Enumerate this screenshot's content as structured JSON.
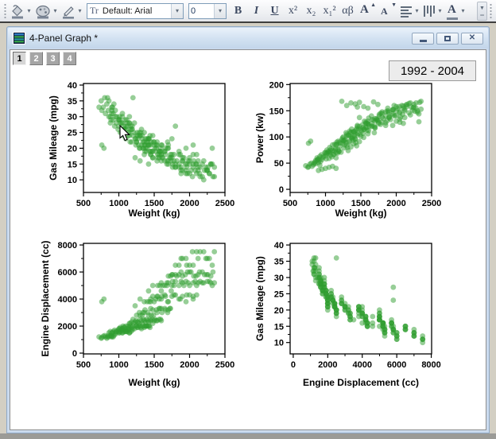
{
  "icons": {
    "dropdown": "▾",
    "up_small": "▲",
    "down_small": "▼",
    "close": "✕",
    "grip_dots": "⋮"
  },
  "toolbar": {
    "font_combo_icon": "Tr",
    "font_combo_value": "Default: Arial",
    "size_combo_value": "0",
    "bold": "B",
    "italic": "I",
    "underline": "U",
    "superscript": "x²",
    "subscript": "x₂",
    "subsuperscript": "x₁²",
    "greek": "αβ",
    "inc_font": "A",
    "dec_font": "A",
    "font_color": "A"
  },
  "window": {
    "title": "4-Panel Graph *",
    "tabs": [
      "1",
      "2",
      "3",
      "4"
    ],
    "active_tab": "1",
    "annotation": "1992 - 2004"
  },
  "chart_data": {
    "type": "scatter",
    "note_label": "1992 - 2004",
    "marker_color": "#2f9e2f",
    "marker_opacity": 0.5,
    "marker_radius": 3.4,
    "columns": [
      "weight_kg",
      "gas_mileage_mpg",
      "power_kw",
      "engine_displacement_cc"
    ],
    "panels": [
      {
        "xlabel": "Weight (kg)",
        "ylabel": "Gas Mileage (mpg)",
        "x_col": 0,
        "y_col": 1,
        "x_ticks": [
          500,
          1000,
          1500,
          2000,
          2500
        ],
        "y_ticks": [
          10,
          15,
          20,
          25,
          30,
          35,
          40
        ],
        "x_range": [
          500,
          2500
        ],
        "y_range": [
          6,
          40.5
        ]
      },
      {
        "xlabel": "Weight (kg)",
        "ylabel": "Power (kw)",
        "x_col": 0,
        "y_col": 2,
        "x_ticks": [
          500,
          1000,
          1500,
          2000,
          2500
        ],
        "y_ticks": [
          0,
          50,
          100,
          150,
          200
        ],
        "x_range": [
          500,
          2500
        ],
        "y_range": [
          -6,
          202
        ]
      },
      {
        "xlabel": "Weight (kg)",
        "ylabel": "Engine Displacement (cc)",
        "x_col": 0,
        "y_col": 3,
        "x_ticks": [
          500,
          1000,
          1500,
          2000,
          2500
        ],
        "y_ticks": [
          0,
          2000,
          4000,
          6000,
          8000
        ],
        "x_range": [
          500,
          2500
        ],
        "y_range": [
          -58,
          8120
        ]
      },
      {
        "xlabel": "Engine Displacement (cc)",
        "ylabel": "Gas Mileage (mpg)",
        "x_col": 3,
        "y_col": 1,
        "x_ticks": [
          0,
          2000,
          4000,
          6000,
          8000
        ],
        "y_ticks": [
          10,
          15,
          20,
          25,
          30,
          35,
          40
        ],
        "x_range": [
          -180,
          8020
        ],
        "y_range": [
          6.5,
          40.5
        ]
      }
    ],
    "rows": [
      [
        720,
        33,
        45,
        1200
      ],
      [
        750,
        35,
        42,
        1100
      ],
      [
        780,
        33,
        48,
        1250
      ],
      [
        800,
        36,
        50,
        1300
      ],
      [
        810,
        31,
        44,
        1200
      ],
      [
        830,
        34,
        47,
        1100
      ],
      [
        850,
        32,
        52,
        1300
      ],
      [
        860,
        35,
        49,
        1200
      ],
      [
        880,
        30,
        55,
        1300
      ],
      [
        900,
        33,
        51,
        1250
      ],
      [
        920,
        31,
        46,
        1200
      ],
      [
        930,
        34,
        53,
        1300
      ],
      [
        760,
        32,
        43,
        1150
      ],
      [
        840,
        36,
        50,
        1200
      ],
      [
        890,
        29,
        57,
        1300
      ],
      [
        860,
        30,
        55,
        1500
      ],
      [
        880,
        28,
        60,
        1600
      ],
      [
        900,
        31,
        58,
        1500
      ],
      [
        920,
        29,
        63,
        1600
      ],
      [
        940,
        27,
        66,
        1700
      ],
      [
        950,
        32,
        57,
        1500
      ],
      [
        970,
        30,
        61,
        1600
      ],
      [
        990,
        26,
        70,
        1700
      ],
      [
        1000,
        29,
        64,
        1600
      ],
      [
        1020,
        28,
        68,
        1600
      ],
      [
        1040,
        25,
        72,
        1700
      ],
      [
        1050,
        31,
        59,
        1500
      ],
      [
        1070,
        27,
        65,
        1600
      ],
      [
        1090,
        29,
        62,
        1600
      ],
      [
        1100,
        26,
        74,
        1700
      ],
      [
        1120,
        28,
        67,
        1600
      ],
      [
        1140,
        25,
        76,
        1700
      ],
      [
        1150,
        30,
        60,
        1500
      ],
      [
        1170,
        27,
        69,
        1600
      ],
      [
        1190,
        26,
        73,
        1700
      ],
      [
        910,
        33,
        56,
        1500
      ],
      [
        960,
        28,
        62,
        1600
      ],
      [
        1010,
        30,
        58,
        1500
      ],
      [
        1060,
        26,
        71,
        1700
      ],
      [
        1110,
        29,
        66,
        1600
      ],
      [
        950,
        30,
        38,
        1400
      ],
      [
        1000,
        29,
        40,
        1500
      ],
      [
        1050,
        28,
        42,
        1500
      ],
      [
        1100,
        27,
        44,
        1600
      ],
      [
        1150,
        28,
        40,
        1500
      ],
      [
        900,
        32,
        36,
        1200
      ],
      [
        1000,
        27,
        70,
        1800
      ],
      [
        1020,
        25,
        75,
        1900
      ],
      [
        1040,
        28,
        72,
        1800
      ],
      [
        1060,
        24,
        80,
        2000
      ],
      [
        1080,
        26,
        77,
        1900
      ],
      [
        1100,
        23,
        85,
        2000
      ],
      [
        1120,
        27,
        73,
        1800
      ],
      [
        1140,
        25,
        78,
        1900
      ],
      [
        1160,
        22,
        90,
        2000
      ],
      [
        1180,
        26,
        76,
        1900
      ],
      [
        1200,
        24,
        82,
        2000
      ],
      [
        1220,
        28,
        71,
        1800
      ],
      [
        1240,
        23,
        88,
        2000
      ],
      [
        1260,
        25,
        79,
        1900
      ],
      [
        1280,
        21,
        95,
        2000
      ],
      [
        1300,
        24,
        84,
        2000
      ],
      [
        1320,
        26,
        74,
        1800
      ],
      [
        1340,
        22,
        92,
        2000
      ],
      [
        1360,
        25,
        81,
        1900
      ],
      [
        1380,
        20,
        100,
        2000
      ],
      [
        1400,
        23,
        87,
        2000
      ],
      [
        1420,
        21,
        96,
        2000
      ],
      [
        1440,
        24,
        83,
        1900
      ],
      [
        1010,
        29,
        68,
        1800
      ],
      [
        1070,
        26,
        74,
        1900
      ],
      [
        1130,
        24,
        86,
        2000
      ],
      [
        1190,
        27,
        72,
        1800
      ],
      [
        1250,
        22,
        93,
        2000
      ],
      [
        1310,
        25,
        80,
        1900
      ],
      [
        1370,
        21,
        98,
        2000
      ],
      [
        1430,
        23,
        89,
        2000
      ],
      [
        1050,
        30,
        69,
        1800
      ],
      [
        1150,
        28,
        70,
        1800
      ],
      [
        1270,
        24,
        85,
        1900
      ],
      [
        1390,
        22,
        94,
        2000
      ],
      [
        1150,
        24,
        85,
        2200
      ],
      [
        1180,
        22,
        92,
        2300
      ],
      [
        1210,
        25,
        88,
        2200
      ],
      [
        1240,
        21,
        98,
        2400
      ],
      [
        1270,
        23,
        94,
        2300
      ],
      [
        1300,
        20,
        105,
        2500
      ],
      [
        1330,
        24,
        90,
        2200
      ],
      [
        1360,
        22,
        100,
        2400
      ],
      [
        1390,
        19,
        110,
        2500
      ],
      [
        1420,
        23,
        96,
        2300
      ],
      [
        1450,
        21,
        104,
        2400
      ],
      [
        1480,
        24,
        91,
        2200
      ],
      [
        1510,
        20,
        112,
        2500
      ],
      [
        1540,
        22,
        99,
        2400
      ],
      [
        1570,
        18,
        118,
        2500
      ],
      [
        1600,
        21,
        106,
        2400
      ],
      [
        1160,
        26,
        86,
        2200
      ],
      [
        1230,
        23,
        95,
        2300
      ],
      [
        1290,
        25,
        89,
        2200
      ],
      [
        1350,
        20,
        108,
        2500
      ],
      [
        1410,
        22,
        102,
        2400
      ],
      [
        1470,
        19,
        115,
        2500
      ],
      [
        1530,
        21,
        107,
        2400
      ],
      [
        1590,
        20,
        113,
        2500
      ],
      [
        1200,
        36,
        90,
        2500
      ],
      [
        1260,
        24,
        93,
        2300
      ],
      [
        1320,
        21,
        103,
        2400
      ],
      [
        1380,
        23,
        97,
        2300
      ],
      [
        1440,
        19,
        116,
        2500
      ],
      [
        1500,
        22,
        101,
        2400
      ],
      [
        1250,
        22,
        100,
        2800
      ],
      [
        1290,
        20,
        108,
        3000
      ],
      [
        1330,
        23,
        103,
        2800
      ],
      [
        1370,
        19,
        115,
        3200
      ],
      [
        1410,
        21,
        110,
        3000
      ],
      [
        1450,
        18,
        122,
        3300
      ],
      [
        1490,
        22,
        105,
        2800
      ],
      [
        1530,
        20,
        118,
        3200
      ],
      [
        1570,
        17,
        128,
        3300
      ],
      [
        1610,
        21,
        112,
        3000
      ],
      [
        1650,
        19,
        125,
        3300
      ],
      [
        1690,
        22,
        108,
        3000
      ],
      [
        1730,
        18,
        132,
        3300
      ],
      [
        1300,
        24,
        102,
        2800
      ],
      [
        1360,
        21,
        109,
        3000
      ],
      [
        1420,
        23,
        106,
        2800
      ],
      [
        1480,
        19,
        120,
        3200
      ],
      [
        1540,
        21,
        114,
        3000
      ],
      [
        1600,
        18,
        130,
        3300
      ],
      [
        1660,
        20,
        121,
        3200
      ],
      [
        1720,
        17,
        135,
        3300
      ],
      [
        1340,
        20,
        111,
        3000
      ],
      [
        1460,
        22,
        107,
        2800
      ],
      [
        1580,
        19,
        126,
        3300
      ],
      [
        1700,
        21,
        117,
        3200
      ],
      [
        1400,
        20,
        110,
        3800
      ],
      [
        1450,
        18,
        120,
        4000
      ],
      [
        1500,
        21,
        115,
        3800
      ],
      [
        1550,
        17,
        130,
        4200
      ],
      [
        1600,
        19,
        125,
        4000
      ],
      [
        1650,
        16,
        140,
        4300
      ],
      [
        1700,
        20,
        118,
        3800
      ],
      [
        1750,
        18,
        132,
        4200
      ],
      [
        1800,
        15,
        148,
        4300
      ],
      [
        1850,
        19,
        127,
        4000
      ],
      [
        1900,
        17,
        138,
        4200
      ],
      [
        1950,
        20,
        122,
        3800
      ],
      [
        2000,
        16,
        150,
        4300
      ],
      [
        2050,
        18,
        134,
        4200
      ],
      [
        2100,
        15,
        155,
        4300
      ],
      [
        1430,
        21,
        113,
        3800
      ],
      [
        1520,
        19,
        123,
        4000
      ],
      [
        1610,
        17,
        136,
        4200
      ],
      [
        1690,
        20,
        120,
        3800
      ],
      [
        1780,
        16,
        145,
        4300
      ],
      [
        1870,
        18,
        131,
        4000
      ],
      [
        1960,
        15,
        152,
        4300
      ],
      [
        760,
        21,
        88,
        3800
      ],
      [
        790,
        20,
        92,
        4000
      ],
      [
        2050,
        21,
        128,
        4000
      ],
      [
        1480,
        17,
        137,
        4200
      ],
      [
        1570,
        19,
        126,
        4000
      ],
      [
        1660,
        18,
        133,
        4200
      ],
      [
        1550,
        18,
        115,
        5000
      ],
      [
        1600,
        16,
        125,
        5200
      ],
      [
        1650,
        19,
        120,
        5000
      ],
      [
        1700,
        15,
        135,
        5200
      ],
      [
        1750,
        17,
        128,
        5000
      ],
      [
        1800,
        14,
        145,
        5300
      ],
      [
        1850,
        18,
        122,
        5000
      ],
      [
        1900,
        16,
        138,
        5200
      ],
      [
        1950,
        13,
        152,
        5300
      ],
      [
        2000,
        17,
        130,
        5000
      ],
      [
        2050,
        15,
        148,
        5200
      ],
      [
        2100,
        18,
        126,
        5000
      ],
      [
        2150,
        14,
        158,
        5300
      ],
      [
        2200,
        16,
        142,
        5200
      ],
      [
        2250,
        13,
        162,
        5300
      ],
      [
        2300,
        15,
        150,
        5200
      ],
      [
        1580,
        19,
        118,
        5000
      ],
      [
        1680,
        16,
        132,
        5200
      ],
      [
        1780,
        18,
        124,
        5000
      ],
      [
        1880,
        14,
        155,
        5300
      ],
      [
        1980,
        16,
        140,
        5200
      ],
      [
        2080,
        13,
        160,
        5300
      ],
      [
        2180,
        15,
        146,
        5200
      ],
      [
        2280,
        12,
        165,
        5300
      ],
      [
        2350,
        14,
        153,
        5200
      ],
      [
        1620,
        17,
        121,
        5000
      ],
      [
        1760,
        15,
        143,
        5300
      ],
      [
        1920,
        17,
        133,
        5000
      ],
      [
        2120,
        16,
        137,
        5200
      ],
      [
        2320,
        20,
        129,
        5000
      ],
      [
        1700,
        16,
        130,
        5700
      ],
      [
        1760,
        14,
        140,
        5800
      ],
      [
        1820,
        16,
        135,
        5700
      ],
      [
        1880,
        13,
        150,
        6000
      ],
      [
        1940,
        15,
        144,
        5800
      ],
      [
        2000,
        12,
        158,
        6000
      ],
      [
        2060,
        16,
        138,
        5700
      ],
      [
        2120,
        14,
        152,
        5800
      ],
      [
        2180,
        11,
        164,
        6000
      ],
      [
        2240,
        13,
        156,
        5800
      ],
      [
        2300,
        15,
        147,
        5700
      ],
      [
        1730,
        17,
        133,
        5700
      ],
      [
        1850,
        14,
        148,
        5800
      ],
      [
        1970,
        12,
        160,
        6000
      ],
      [
        2090,
        15,
        143,
        5700
      ],
      [
        2210,
        13,
        157,
        5800
      ],
      [
        2330,
        11,
        166,
        6000
      ],
      [
        1800,
        27,
        128,
        5800
      ],
      [
        1900,
        16,
        136,
        5700
      ],
      [
        2020,
        13,
        154,
        6000
      ],
      [
        2140,
        12,
        161,
        6000
      ],
      [
        2260,
        14,
        149,
        5800
      ],
      [
        1750,
        23,
        125,
        5800
      ],
      [
        1800,
        14,
        138,
        6500
      ],
      [
        1880,
        12,
        148,
        7000
      ],
      [
        1960,
        14,
        142,
        6500
      ],
      [
        2040,
        11,
        158,
        7500
      ],
      [
        2120,
        13,
        150,
        7000
      ],
      [
        2200,
        10,
        165,
        7500
      ],
      [
        2280,
        12,
        155,
        7000
      ],
      [
        2350,
        11,
        168,
        7500
      ],
      [
        1850,
        15,
        140,
        6500
      ],
      [
        1950,
        12,
        152,
        7000
      ],
      [
        2050,
        14,
        146,
        6500
      ],
      [
        2150,
        11,
        162,
        7500
      ],
      [
        2250,
        13,
        157,
        7000
      ],
      [
        2320,
        15,
        144,
        6500
      ],
      [
        1900,
        13,
        147,
        7000
      ],
      [
        2000,
        15,
        141,
        6500
      ],
      [
        2100,
        12,
        159,
        7500
      ],
      [
        2230,
        14,
        151,
        7000
      ],
      [
        1230,
        17,
        168,
        3500
      ],
      [
        1300,
        16,
        160,
        4000
      ],
      [
        1360,
        18,
        165,
        3800
      ],
      [
        1420,
        15,
        163,
        4600
      ],
      [
        1480,
        17,
        166,
        5000
      ],
      [
        1540,
        16,
        158,
        4200
      ],
      [
        1600,
        18,
        155,
        4600
      ],
      [
        1680,
        15,
        167,
        5000
      ],
      [
        1740,
        16,
        162,
        4600
      ],
      [
        1450,
        19,
        157,
        3800
      ]
    ]
  }
}
